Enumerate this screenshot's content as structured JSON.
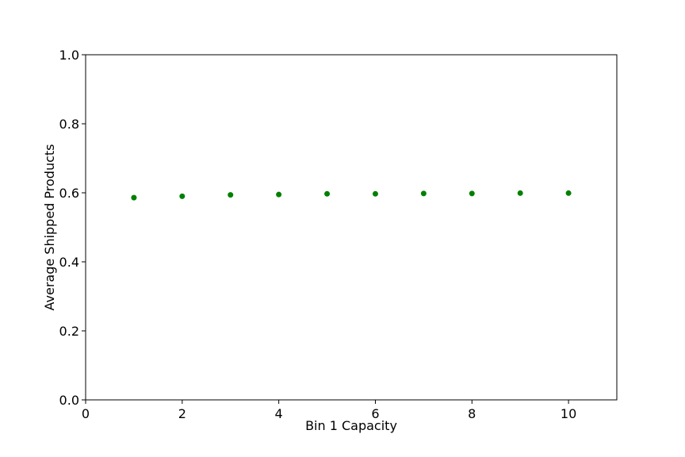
{
  "chart_data": {
    "type": "scatter",
    "title": "",
    "xlabel": "Bin 1 Capacity",
    "ylabel": "Average Shipped Products",
    "xlim": [
      0,
      11
    ],
    "ylim": [
      0.0,
      1.0
    ],
    "xticks": [
      0,
      2,
      4,
      6,
      8,
      10
    ],
    "xtick_labels": [
      "0",
      "2",
      "4",
      "6",
      "8",
      "10"
    ],
    "yticks": [
      0.0,
      0.2,
      0.4,
      0.6,
      0.8,
      1.0
    ],
    "ytick_labels": [
      "0.0",
      "0.2",
      "0.4",
      "0.6",
      "0.8",
      "1.0"
    ],
    "grid": false,
    "series": [
      {
        "color": "#008000",
        "x": [
          1,
          2,
          3,
          4,
          5,
          6,
          7,
          8,
          9,
          10
        ],
        "y": [
          0.586,
          0.59,
          0.594,
          0.595,
          0.597,
          0.597,
          0.598,
          0.598,
          0.599,
          0.599
        ]
      }
    ]
  }
}
